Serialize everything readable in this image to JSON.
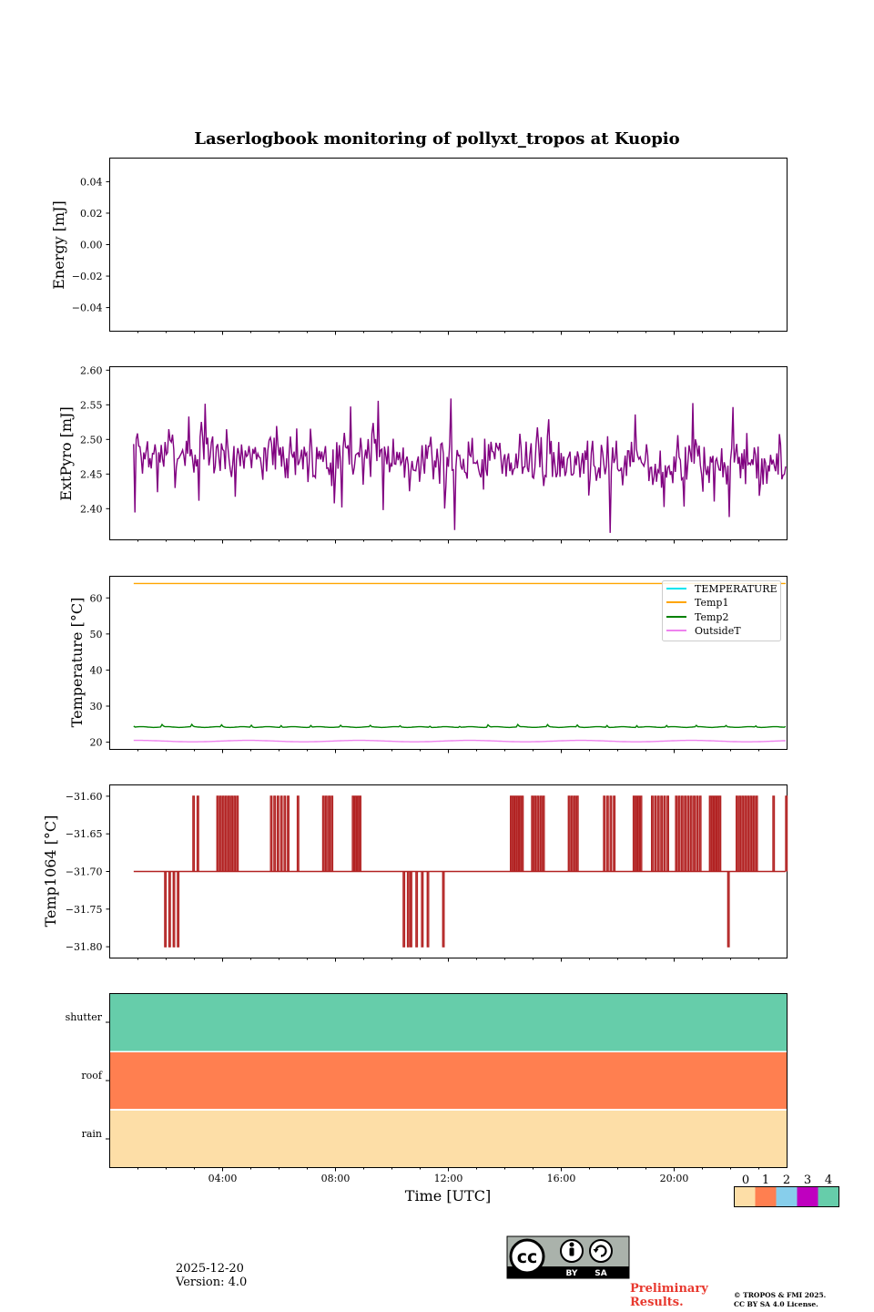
{
  "title": "Laserlogbook monitoring of pollyxt_tropos at Kuopio",
  "footer": {
    "date": "2025-12-20",
    "version": "Version: 4.0",
    "preliminary_1": "Preliminary",
    "preliminary_2": "Results.",
    "copyright_1": "© TROPOS & FMI 2025.",
    "copyright_2": "CC BY SA 4.0 License.",
    "cc_by": "BY",
    "cc_sa": "SA",
    "cc_mark": "cc"
  },
  "chart_data": [
    {
      "id": "energy",
      "type": "line",
      "ylabel": "Energy [mJ]",
      "ylim": [
        -0.055,
        0.055
      ],
      "yticks": [
        0.04,
        0.02,
        0.0,
        -0.02,
        -0.04
      ],
      "ytick_labels": [
        "0.04",
        "0.02",
        "0.00",
        "−0.02",
        "−0.04"
      ],
      "series": []
    },
    {
      "id": "extpyro",
      "type": "line",
      "ylabel": "ExtPyro [mJ]",
      "ylim": [
        2.355,
        2.605
      ],
      "yticks": [
        2.6,
        2.55,
        2.5,
        2.45,
        2.4
      ],
      "ytick_labels": [
        "2.60",
        "2.55",
        "2.50",
        "2.45",
        "2.40"
      ],
      "series": [
        {
          "name": "ExtPyro",
          "color": "#800080",
          "x_start": 0.85,
          "x_end": 23.95,
          "mean": 2.483,
          "noise": 0.026,
          "trend": -0.02,
          "seed": 7
        }
      ]
    },
    {
      "id": "temperature",
      "type": "line",
      "ylabel": "Temperature [°C]",
      "ylim": [
        18,
        66
      ],
      "yticks": [
        60,
        50,
        40,
        30,
        20
      ],
      "ytick_labels": [
        "60",
        "50",
        "40",
        "30",
        "20"
      ],
      "legend": "top-right",
      "series": [
        {
          "name": "TEMPERATURE",
          "color": "#00e5ee"
        },
        {
          "name": "Temp1",
          "color": "#ffa500",
          "value": 64.0
        },
        {
          "name": "Temp2",
          "color": "#008000",
          "value": 24.2,
          "bump": 0.7
        },
        {
          "name": "OutsideT",
          "color": "#ee82ee",
          "value": 20.3
        }
      ]
    },
    {
      "id": "temp1064",
      "type": "line",
      "ylabel": "Temp1064 [°C]",
      "ylim": [
        -31.815,
        -31.585
      ],
      "yticks": [
        -31.6,
        -31.65,
        -31.7,
        -31.75,
        -31.8
      ],
      "ytick_labels": [
        "−31.60",
        "−31.65",
        "−31.70",
        "−31.75",
        "−31.80"
      ],
      "series": [
        {
          "name": "Temp1064",
          "color": "#b22222",
          "baseline": -31.7,
          "high": -31.6,
          "low": -31.8,
          "up_bursts": [
            [
              2.95,
              3.1,
              2
            ],
            [
              3.8,
              4.5,
              8
            ],
            [
              5.7,
              6.3,
              6
            ],
            [
              6.65,
              6.7,
              1
            ],
            [
              7.55,
              7.85,
              4
            ],
            [
              8.6,
              8.85,
              4
            ],
            [
              14.2,
              14.6,
              6
            ],
            [
              14.95,
              15.35,
              5
            ],
            [
              16.25,
              16.55,
              4
            ],
            [
              17.5,
              17.85,
              4
            ],
            [
              18.55,
              18.8,
              4
            ],
            [
              19.2,
              19.75,
              6
            ],
            [
              20.05,
              20.9,
              9
            ],
            [
              21.25,
              21.6,
              5
            ],
            [
              22.2,
              22.9,
              8
            ],
            [
              23.5,
              23.6,
              1
            ],
            [
              23.95,
              24.0,
              1
            ]
          ],
          "down_bursts": [
            [
              1.95,
              2.4,
              4
            ],
            [
              10.4,
              10.55,
              2
            ],
            [
              10.65,
              11.25,
              4
            ],
            [
              11.8,
              11.85,
              1
            ],
            [
              21.9,
              21.97,
              1
            ]
          ]
        }
      ]
    }
  ],
  "status_panel": {
    "rows": [
      "shutter",
      "roof",
      "rain"
    ],
    "row_colors": [
      "#66cdaa",
      "#ff7f50",
      "#fddea7"
    ],
    "colorbar_labels": [
      "0",
      "1",
      "2",
      "3",
      "4"
    ],
    "colorbar_colors": [
      "#fddea7",
      "#ff7f50",
      "#87ceeb",
      "#bf00bf",
      "#66cdaa"
    ]
  },
  "x_axis": {
    "label": "Time [UTC]",
    "range_hours": [
      0,
      24
    ],
    "tick_hours": [
      4,
      8,
      12,
      16,
      20
    ],
    "tick_labels": [
      "04:00",
      "08:00",
      "12:00",
      "16:00",
      "20:00"
    ]
  }
}
